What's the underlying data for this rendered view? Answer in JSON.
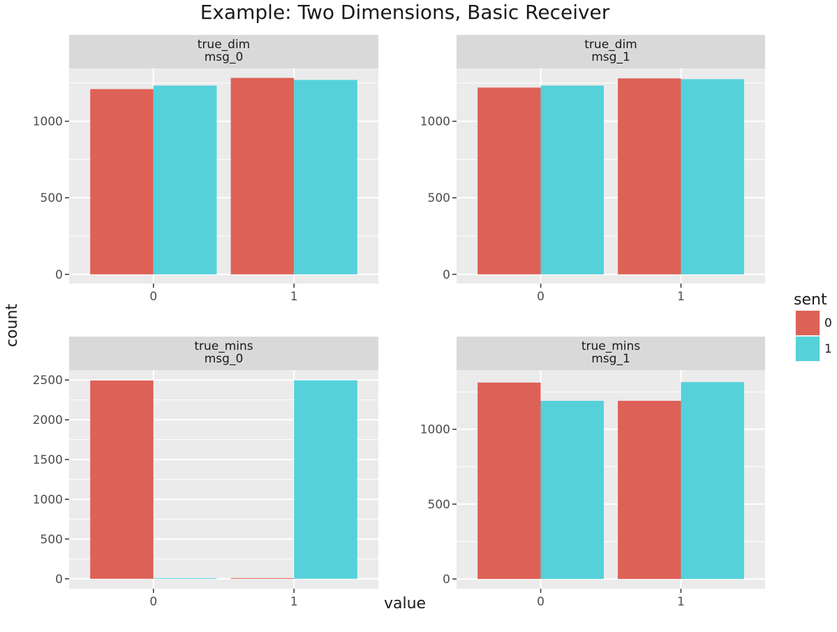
{
  "chart_data": {
    "type": "bar",
    "title": "Example: Two Dimensions, Basic Receiver",
    "xlabel": "value",
    "ylabel": "count",
    "categories": [
      "0",
      "1"
    ],
    "legend": {
      "title": "sent",
      "position": "right",
      "entries": [
        {
          "label": "0",
          "color": "#DE6157"
        },
        {
          "label": "1",
          "color": "#55D1DA"
        }
      ]
    },
    "colors": {
      "panel_bg": "#EBEBEB",
      "strip_bg": "#D9D9D9",
      "grid": "#FFFFFF",
      "tick_text": "#4D4D4D",
      "tick_mark": "#333333"
    },
    "grid": true,
    "facets": [
      {
        "strip": [
          "true_dim",
          "msg_0"
        ],
        "ylim": [
          -60,
          1345
        ],
        "yticks": [
          0,
          500,
          1000
        ],
        "series": [
          {
            "name": "0",
            "values": [
              1210,
              1283
            ]
          },
          {
            "name": "1",
            "values": [
              1233,
              1270
            ]
          }
        ]
      },
      {
        "strip": [
          "true_dim",
          "msg_1"
        ],
        "ylim": [
          -60,
          1345
        ],
        "yticks": [
          0,
          500,
          1000
        ],
        "series": [
          {
            "name": "0",
            "values": [
              1220,
              1280
            ]
          },
          {
            "name": "1",
            "values": [
              1233,
              1275
            ]
          }
        ]
      },
      {
        "strip": [
          "true_mins",
          "msg_0"
        ],
        "ylim": [
          -125,
          2625
        ],
        "yticks": [
          0,
          500,
          1000,
          1500,
          2000,
          2500
        ],
        "series": [
          {
            "name": "0",
            "values": [
              2495,
              8
            ]
          },
          {
            "name": "1",
            "values": [
              8,
              2497
            ]
          }
        ]
      },
      {
        "strip": [
          "true_mins",
          "msg_1"
        ],
        "ylim": [
          -65,
          1395
        ],
        "yticks": [
          0,
          500,
          1000
        ],
        "series": [
          {
            "name": "0",
            "values": [
              1312,
              1190
            ]
          },
          {
            "name": "1",
            "values": [
              1190,
              1315
            ]
          }
        ]
      }
    ]
  }
}
